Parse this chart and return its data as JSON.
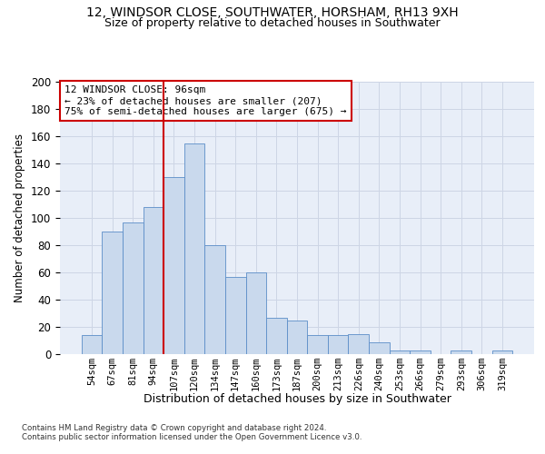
{
  "title": "12, WINDSOR CLOSE, SOUTHWATER, HORSHAM, RH13 9XH",
  "subtitle": "Size of property relative to detached houses in Southwater",
  "xlabel": "Distribution of detached houses by size in Southwater",
  "ylabel": "Number of detached properties",
  "bar_labels": [
    "54sqm",
    "67sqm",
    "81sqm",
    "94sqm",
    "107sqm",
    "120sqm",
    "134sqm",
    "147sqm",
    "160sqm",
    "173sqm",
    "187sqm",
    "200sqm",
    "213sqm",
    "226sqm",
    "240sqm",
    "253sqm",
    "266sqm",
    "279sqm",
    "293sqm",
    "306sqm",
    "319sqm"
  ],
  "bar_values": [
    14,
    90,
    97,
    108,
    130,
    155,
    80,
    57,
    60,
    27,
    25,
    14,
    14,
    15,
    9,
    3,
    3,
    0,
    3,
    0,
    3
  ],
  "bar_color": "#c9d9ed",
  "bar_edge_color": "#5b8dc8",
  "vline_x": 3.5,
  "vline_color": "#cc0000",
  "annotation_text": "12 WINDSOR CLOSE: 96sqm\n← 23% of detached houses are smaller (207)\n75% of semi-detached houses are larger (675) →",
  "annotation_box_color": "#ffffff",
  "annotation_box_edge": "#cc0000",
  "ylim": [
    0,
    200
  ],
  "yticks": [
    0,
    20,
    40,
    60,
    80,
    100,
    120,
    140,
    160,
    180,
    200
  ],
  "grid_color": "#cdd5e5",
  "background_color": "#e8eef8",
  "footnote1": "Contains HM Land Registry data © Crown copyright and database right 2024.",
  "footnote2": "Contains public sector information licensed under the Open Government Licence v3.0.",
  "title_fontsize": 10,
  "subtitle_fontsize": 9
}
